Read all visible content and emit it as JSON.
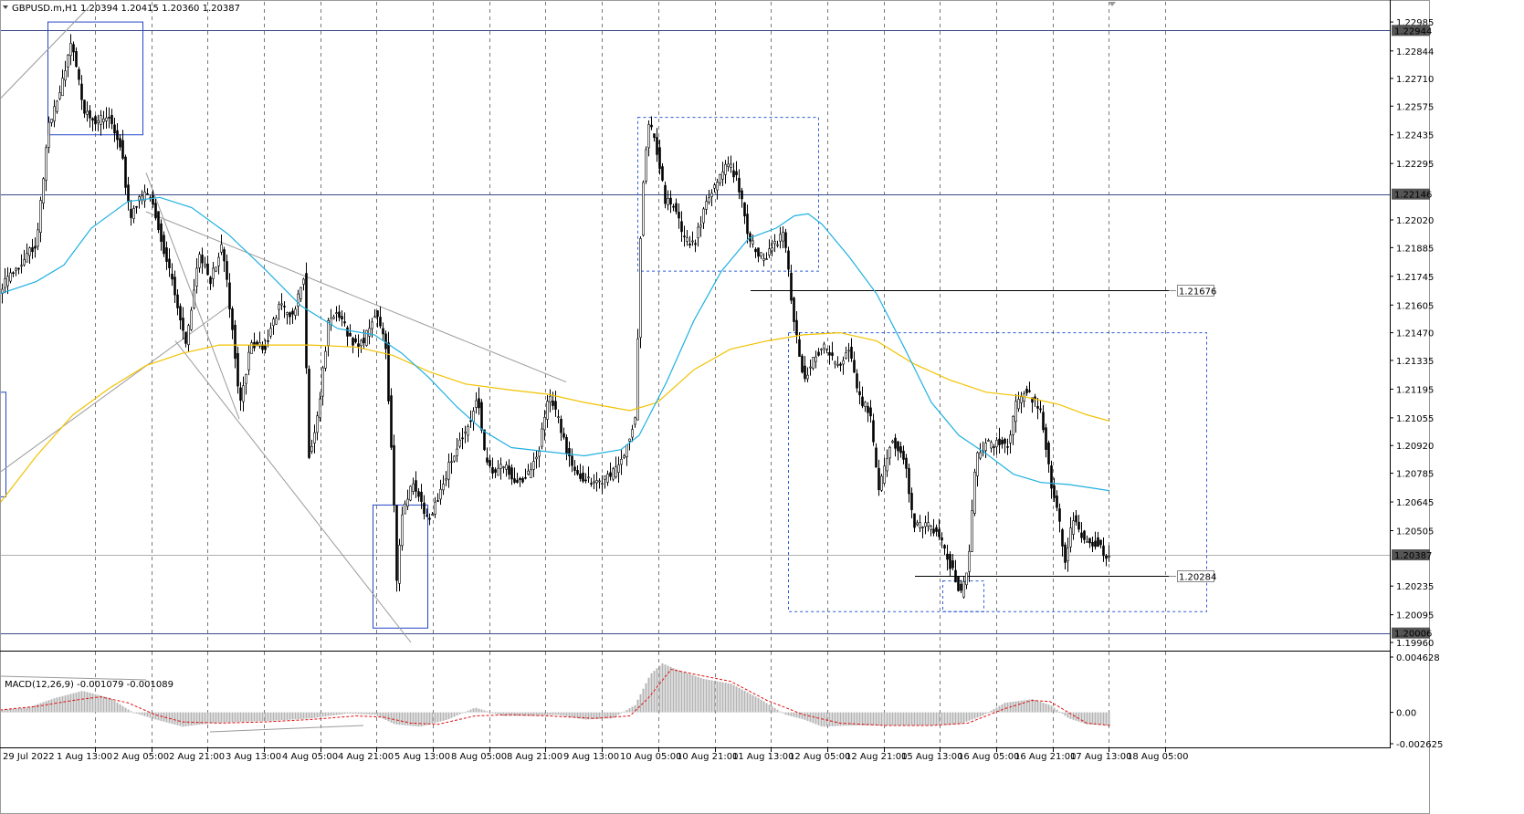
{
  "window": {
    "symbol_title": "GBPUSD.m,H1",
    "ohlc": "1.20394 1.20415 1.20360 1.20387"
  },
  "colors": {
    "candle": "#000000",
    "ma_fast": "#1fb0e0",
    "ma_slow": "#f2c200",
    "box_solid": "#2345c8",
    "box_dashed": "#2d5bd6",
    "level_line": "#3a4a8a",
    "grid": "#7a7a7a",
    "macd_hist": "#b4b4b4",
    "macd_signal": "#e01010",
    "price_marker_bg": "#555555",
    "price_marker_fg": "#ffffff"
  },
  "chart_data": {
    "type": "candlestick",
    "timeframe": "H1",
    "y_range": [
      1.1996,
      1.2307
    ],
    "price_ticks": [
      "1.22985",
      "1.22844",
      "1.22710",
      "1.22575",
      "1.22435",
      "1.22295",
      "1.22020",
      "1.21885",
      "1.21745",
      "1.21605",
      "1.21470",
      "1.21335",
      "1.21195",
      "1.21055",
      "1.20920",
      "1.20785",
      "1.20645",
      "1.20505",
      "1.20235",
      "1.20095",
      "1.19960"
    ],
    "marked_prices": [
      {
        "label": "1.22944",
        "value": 1.22944,
        "style": "dark"
      },
      {
        "label": "1.22146",
        "value": 1.22146,
        "style": "dark"
      },
      {
        "label": "1.20387",
        "value": 1.20387,
        "style": "dark"
      },
      {
        "label": "1.20006",
        "value": 1.20006,
        "style": "dark"
      },
      {
        "label": "1.21676",
        "value": 1.21676,
        "style": "light"
      },
      {
        "label": "1.20284",
        "value": 1.20284,
        "style": "light"
      }
    ],
    "time_labels": [
      "29 Jul 2022",
      "1 Aug 13:00",
      "2 Aug 05:00",
      "2 Aug 21:00",
      "3 Aug 13:00",
      "4 Aug 05:00",
      "4 Aug 21:00",
      "5 Aug 13:00",
      "8 Aug 05:00",
      "8 Aug 21:00",
      "9 Aug 13:00",
      "10 Aug 05:00",
      "10 Aug 21:00",
      "11 Aug 13:00",
      "12 Aug 05:00",
      "12 Aug 21:00",
      "15 Aug 13:00",
      "16 Aug 05:00",
      "16 Aug 21:00",
      "17 Aug 13:00",
      "18 Aug 05:00"
    ],
    "price_path": [
      [
        0,
        1.2168
      ],
      [
        12,
        1.2176
      ],
      [
        25,
        1.2183
      ],
      [
        40,
        1.2191
      ],
      [
        52,
        1.2246
      ],
      [
        65,
        1.2264
      ],
      [
        78,
        1.229
      ],
      [
        92,
        1.2254
      ],
      [
        105,
        1.225
      ],
      [
        118,
        1.2254
      ],
      [
        132,
        1.2238
      ],
      [
        142,
        1.2202
      ],
      [
        152,
        1.2213
      ],
      [
        165,
        1.2215
      ],
      [
        177,
        1.2191
      ],
      [
        190,
        1.2169
      ],
      [
        203,
        1.214
      ],
      [
        217,
        1.2185
      ],
      [
        230,
        1.2173
      ],
      [
        243,
        1.219
      ],
      [
        255,
        1.2146
      ],
      [
        262,
        1.2109
      ],
      [
        273,
        1.214
      ],
      [
        290,
        1.2141
      ],
      [
        305,
        1.216
      ],
      [
        320,
        1.2155
      ],
      [
        333,
        1.2177
      ],
      [
        337,
        1.2085
      ],
      [
        347,
        1.2105
      ],
      [
        360,
        1.2155
      ],
      [
        372,
        1.2155
      ],
      [
        385,
        1.2142
      ],
      [
        398,
        1.2143
      ],
      [
        410,
        1.2157
      ],
      [
        422,
        1.214
      ],
      [
        430,
        1.2075
      ],
      [
        434,
        1.2025
      ],
      [
        440,
        1.206
      ],
      [
        452,
        1.2075
      ],
      [
        468,
        1.2055
      ],
      [
        480,
        1.2067
      ],
      [
        495,
        1.2087
      ],
      [
        510,
        1.21
      ],
      [
        523,
        1.2115
      ],
      [
        530,
        1.2088
      ],
      [
        540,
        1.2078
      ],
      [
        552,
        1.2082
      ],
      [
        565,
        1.2074
      ],
      [
        580,
        1.2079
      ],
      [
        590,
        1.209
      ],
      [
        600,
        1.2117
      ],
      [
        610,
        1.2106
      ],
      [
        620,
        1.209
      ],
      [
        632,
        1.2077
      ],
      [
        645,
        1.2075
      ],
      [
        660,
        1.2075
      ],
      [
        675,
        1.208
      ],
      [
        688,
        1.2094
      ],
      [
        696,
        1.2108
      ],
      [
        702,
        1.2212
      ],
      [
        710,
        1.225
      ],
      [
        718,
        1.2238
      ],
      [
        728,
        1.2211
      ],
      [
        738,
        1.221
      ],
      [
        748,
        1.2192
      ],
      [
        760,
        1.219
      ],
      [
        772,
        1.221
      ],
      [
        785,
        1.222
      ],
      [
        798,
        1.223
      ],
      [
        808,
        1.222
      ],
      [
        820,
        1.2192
      ],
      [
        835,
        1.2183
      ],
      [
        848,
        1.219
      ],
      [
        858,
        1.2195
      ],
      [
        866,
        1.2165
      ],
      [
        872,
        1.2144
      ],
      [
        880,
        1.2124
      ],
      [
        890,
        1.2135
      ],
      [
        902,
        1.2141
      ],
      [
        912,
        1.2133
      ],
      [
        920,
        1.2133
      ],
      [
        930,
        1.2139
      ],
      [
        940,
        1.2115
      ],
      [
        952,
        1.2108
      ],
      [
        962,
        1.207
      ],
      [
        975,
        1.2095
      ],
      [
        990,
        1.2085
      ],
      [
        1000,
        1.2054
      ],
      [
        1012,
        1.2054
      ],
      [
        1025,
        1.205
      ],
      [
        1035,
        1.204
      ],
      [
        1045,
        1.2028
      ],
      [
        1052,
        1.202
      ],
      [
        1060,
        1.2035
      ],
      [
        1068,
        1.2085
      ],
      [
        1080,
        1.2093
      ],
      [
        1092,
        1.2093
      ],
      [
        1104,
        1.2093
      ],
      [
        1112,
        1.2112
      ],
      [
        1122,
        1.2118
      ],
      [
        1130,
        1.2115
      ],
      [
        1140,
        1.2108
      ],
      [
        1150,
        1.2075
      ],
      [
        1158,
        1.206
      ],
      [
        1165,
        1.2035
      ],
      [
        1175,
        1.2057
      ],
      [
        1188,
        1.2045
      ],
      [
        1200,
        1.2045
      ],
      [
        1210,
        1.2038
      ],
      [
        1216,
        1.2039
      ]
    ],
    "ma_fast_path": [
      [
        0,
        1.2166
      ],
      [
        40,
        1.2172
      ],
      [
        70,
        1.218
      ],
      [
        100,
        1.2198
      ],
      [
        140,
        1.2211
      ],
      [
        175,
        1.2213
      ],
      [
        210,
        1.2208
      ],
      [
        250,
        1.2195
      ],
      [
        290,
        1.2178
      ],
      [
        330,
        1.216
      ],
      [
        370,
        1.2149
      ],
      [
        410,
        1.2146
      ],
      [
        440,
        1.2137
      ],
      [
        470,
        1.2125
      ],
      [
        500,
        1.2111
      ],
      [
        530,
        1.2099
      ],
      [
        560,
        1.2091
      ],
      [
        600,
        1.2089
      ],
      [
        640,
        1.2087
      ],
      [
        680,
        1.209
      ],
      [
        700,
        1.2097
      ],
      [
        730,
        1.2123
      ],
      [
        760,
        1.2153
      ],
      [
        790,
        1.2177
      ],
      [
        820,
        1.2193
      ],
      [
        850,
        1.2198
      ],
      [
        870,
        1.2204
      ],
      [
        885,
        1.2205
      ],
      [
        900,
        1.22
      ],
      [
        930,
        1.2184
      ],
      [
        960,
        1.2166
      ],
      [
        990,
        1.214
      ],
      [
        1020,
        1.2113
      ],
      [
        1050,
        1.2097
      ],
      [
        1080,
        1.2088
      ],
      [
        1110,
        1.2078
      ],
      [
        1140,
        1.2074
      ],
      [
        1170,
        1.2073
      ],
      [
        1200,
        1.2071
      ],
      [
        1215,
        1.207
      ]
    ],
    "ma_slow_path": [
      [
        0,
        1.2064
      ],
      [
        40,
        1.2087
      ],
      [
        80,
        1.2107
      ],
      [
        120,
        1.212
      ],
      [
        160,
        1.2131
      ],
      [
        200,
        1.2137
      ],
      [
        240,
        1.2141
      ],
      [
        290,
        1.2141
      ],
      [
        340,
        1.2141
      ],
      [
        390,
        1.214
      ],
      [
        430,
        1.2136
      ],
      [
        470,
        1.2128
      ],
      [
        510,
        1.2122
      ],
      [
        560,
        1.2119
      ],
      [
        600,
        1.2117
      ],
      [
        640,
        1.2113
      ],
      [
        690,
        1.2109
      ],
      [
        720,
        1.2113
      ],
      [
        760,
        1.2129
      ],
      [
        800,
        1.2139
      ],
      [
        840,
        1.2143
      ],
      [
        880,
        1.2146
      ],
      [
        920,
        1.2147
      ],
      [
        960,
        1.2143
      ],
      [
        1000,
        1.2132
      ],
      [
        1040,
        1.2124
      ],
      [
        1080,
        1.2118
      ],
      [
        1120,
        1.2116
      ],
      [
        1160,
        1.2112
      ],
      [
        1190,
        1.2107
      ],
      [
        1215,
        1.2104
      ]
    ],
    "boxes": [
      {
        "style": "solid",
        "x1": 52,
        "x2": 156,
        "p_top": 1.22985,
        "p_bot": 1.22435
      },
      {
        "style": "solid",
        "x1": 408,
        "x2": 468,
        "p_top": 1.2063,
        "p_bot": 1.2003
      },
      {
        "style": "solid",
        "x1": 0,
        "x2": 6,
        "p_top": 1.2118,
        "p_bot": 1.2067
      },
      {
        "style": "dashed",
        "x1": 698,
        "x2": 896,
        "p_top": 1.2252,
        "p_bot": 1.2177
      },
      {
        "style": "dashed",
        "x1": 863,
        "x2": 1321,
        "p_top": 1.2147,
        "p_bot": 1.2011
      },
      {
        "style": "dashed",
        "x1": 1032,
        "x2": 1077,
        "p_top": 1.2026,
        "p_bot": 1.2011
      }
    ],
    "trend_lines": [
      {
        "x1": 0,
        "p1": 1.2261,
        "x2": 100,
        "p2": 1.2307
      },
      {
        "x1": 0,
        "p1": 1.2079,
        "x2": 250,
        "p2": 1.216
      },
      {
        "x1": 160,
        "p1": 1.2206,
        "x2": 620,
        "p2": 1.2123
      },
      {
        "x1": 192,
        "p1": 1.2143,
        "x2": 450,
        "p2": 1.1996
      },
      {
        "x1": 160,
        "p1": 1.2225,
        "x2": 262,
        "p2": 1.2105
      }
    ],
    "horizontal_segments": [
      {
        "x1": 822,
        "x2": 1280,
        "value": 1.21676,
        "label": "1.21676"
      },
      {
        "x1": 1002,
        "x2": 1280,
        "value": 1.20284,
        "label": "1.20284"
      }
    ],
    "full_width_levels": [
      1.22944,
      1.22146,
      1.20006,
      1.20387
    ],
    "macd": {
      "label": "MACD(12,26,9) -0.001079 -0.001089",
      "y_range": [
        -0.002625,
        0.004628
      ],
      "ticks": [
        "0.004628",
        "0.00",
        "-0.002625"
      ],
      "histogram_path": [
        [
          0,
          0.0002
        ],
        [
          30,
          0.0004
        ],
        [
          60,
          0.0012
        ],
        [
          90,
          0.0018
        ],
        [
          120,
          0.0012
        ],
        [
          145,
          0.0
        ],
        [
          170,
          -0.0006
        ],
        [
          200,
          -0.0012
        ],
        [
          230,
          -0.0009
        ],
        [
          260,
          -0.0008
        ],
        [
          300,
          -0.0007
        ],
        [
          340,
          -0.0005
        ],
        [
          380,
          -0.0001
        ],
        [
          410,
          -0.0002
        ],
        [
          432,
          -0.001
        ],
        [
          460,
          -0.0012
        ],
        [
          490,
          -0.0006
        ],
        [
          520,
          0.0004
        ],
        [
          550,
          -0.0003
        ],
        [
          580,
          -0.0003
        ],
        [
          610,
          -0.0002
        ],
        [
          640,
          -0.0006
        ],
        [
          670,
          -0.0005
        ],
        [
          695,
          0.0006
        ],
        [
          712,
          0.0032
        ],
        [
          725,
          0.0041
        ],
        [
          740,
          0.0036
        ],
        [
          770,
          0.0028
        ],
        [
          800,
          0.0024
        ],
        [
          830,
          0.0012
        ],
        [
          860,
          -0.0002
        ],
        [
          880,
          -0.0006
        ],
        [
          900,
          -0.0012
        ],
        [
          930,
          -0.0011
        ],
        [
          960,
          -0.0011
        ],
        [
          990,
          -0.0011
        ],
        [
          1020,
          -0.0011
        ],
        [
          1050,
          -0.001
        ],
        [
          1075,
          -0.0003
        ],
        [
          1100,
          0.0008
        ],
        [
          1130,
          0.0011
        ],
        [
          1150,
          0.0006
        ],
        [
          1170,
          -0.0005
        ],
        [
          1190,
          -0.001
        ],
        [
          1216,
          -0.0011
        ]
      ],
      "signal_path": [
        [
          0,
          0.0002
        ],
        [
          40,
          0.0005
        ],
        [
          80,
          0.001
        ],
        [
          110,
          0.0013
        ],
        [
          140,
          0.0008
        ],
        [
          170,
          -0.0002
        ],
        [
          200,
          -0.0008
        ],
        [
          240,
          -0.0009
        ],
        [
          290,
          -0.0008
        ],
        [
          340,
          -0.0006
        ],
        [
          390,
          -0.0003
        ],
        [
          420,
          -0.0004
        ],
        [
          450,
          -0.0009
        ],
        [
          480,
          -0.001
        ],
        [
          520,
          -0.0003
        ],
        [
          560,
          -0.0002
        ],
        [
          600,
          -0.0003
        ],
        [
          650,
          -0.0005
        ],
        [
          690,
          -0.0003
        ],
        [
          710,
          0.0012
        ],
        [
          735,
          0.0036
        ],
        [
          760,
          0.0032
        ],
        [
          800,
          0.0026
        ],
        [
          840,
          0.001
        ],
        [
          880,
          -0.0002
        ],
        [
          920,
          -0.0009
        ],
        [
          970,
          -0.0011
        ],
        [
          1020,
          -0.0011
        ],
        [
          1060,
          -0.0009
        ],
        [
          1100,
          0.0003
        ],
        [
          1130,
          0.001
        ],
        [
          1150,
          0.0009
        ],
        [
          1170,
          0.0
        ],
        [
          1190,
          -0.0009
        ],
        [
          1216,
          -0.0011
        ]
      ]
    }
  }
}
